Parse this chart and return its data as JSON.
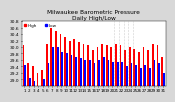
{
  "title": "Milwaukee Barometric Pressure\nDaily High/Low",
  "title_fontsize": 4.2,
  "background_color": "#d8d8d8",
  "plot_bg_color": "#ffffff",
  "bar_color_high": "#ff0000",
  "bar_color_low": "#0000ff",
  "ylim": [
    28.8,
    30.8
  ],
  "yticks": [
    29.0,
    29.2,
    29.4,
    29.6,
    29.8,
    30.0,
    30.2,
    30.4,
    30.6,
    30.8
  ],
  "ylabel_fontsize": 3.2,
  "xlabel_fontsize": 3.0,
  "dotted_vline_positions": [
    19.5,
    20.5,
    21.5,
    22.5,
    23.5
  ],
  "highs": [
    30.05,
    29.5,
    29.4,
    29.2,
    29.3,
    30.1,
    30.6,
    30.5,
    30.4,
    30.3,
    30.2,
    30.25,
    30.15,
    30.1,
    30.05,
    29.9,
    30.0,
    30.1,
    30.05,
    30.0,
    30.1,
    30.05,
    29.9,
    30.0,
    29.95,
    29.85,
    30.0,
    29.9,
    30.1,
    30.05,
    29.7
  ],
  "lows": [
    29.45,
    29.05,
    28.95,
    28.8,
    29.0,
    29.5,
    30.0,
    30.0,
    29.85,
    29.8,
    29.75,
    29.7,
    29.65,
    29.6,
    29.6,
    29.5,
    29.6,
    29.7,
    29.6,
    29.55,
    29.55,
    29.55,
    29.4,
    29.5,
    29.45,
    29.35,
    29.45,
    29.35,
    29.6,
    29.5,
    29.2
  ],
  "xlabels": [
    "1",
    "2",
    "3",
    "4",
    "5",
    "6",
    "7",
    "8",
    "9",
    "10",
    "11",
    "12",
    "13",
    "14",
    "15",
    "16",
    "17",
    "18",
    "19",
    "20",
    "21",
    "22",
    "23",
    "24",
    "25",
    "26",
    "27",
    "28",
    "29",
    "30",
    "31"
  ]
}
